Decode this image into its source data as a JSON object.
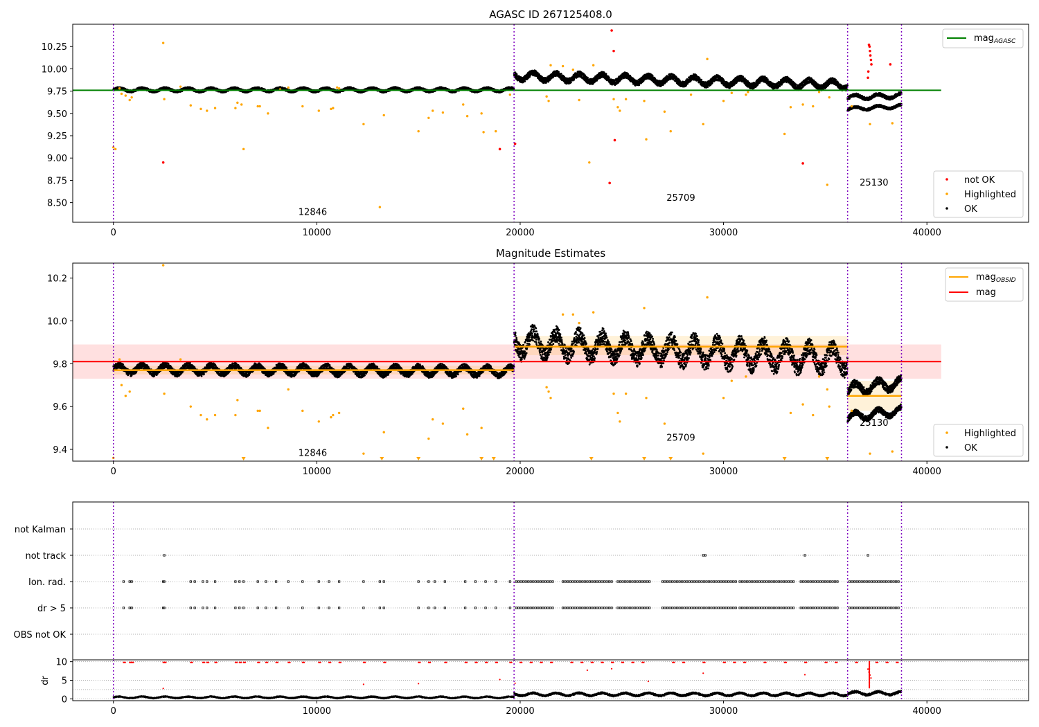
{
  "chart_data": [
    {
      "type": "scatter",
      "title": "AGASC ID 267125408.0",
      "xlabel": "",
      "ylabel": "",
      "xlim": [
        -2000,
        45000
      ],
      "ylim": [
        8.28,
        10.5
      ],
      "xticks": [
        0,
        10000,
        20000,
        30000,
        40000
      ],
      "xtick_labels": [
        "0",
        "10000",
        "20000",
        "30000",
        "40000"
      ],
      "yticks": [
        8.5,
        8.75,
        9.0,
        9.25,
        9.5,
        9.75,
        10.0,
        10.25
      ],
      "ytick_labels": [
        "8.50",
        "8.75",
        "9.00",
        "9.25",
        "9.50",
        "9.75",
        "10.00",
        "10.25"
      ],
      "obsid_boundaries": [
        0,
        19700,
        36100,
        38750
      ],
      "obsid_labels": [
        {
          "text": "12846",
          "x": 9800,
          "y": 8.36
        },
        {
          "text": "25709",
          "x": 27900,
          "y": 8.52
        },
        {
          "text": "25130",
          "x": 37400,
          "y": 8.69
        }
      ],
      "reference_line": {
        "name": "mag_AGASC",
        "y": 9.76,
        "x": [
          -2000,
          40700
        ],
        "color": "#008000"
      },
      "ok_segments": [
        {
          "x": [
            0,
            19700
          ],
          "y_center": [
            9.765,
            9.765
          ],
          "y_spread": 0.03
        },
        {
          "x": [
            19700,
            36100
          ],
          "y_center": [
            9.92,
            9.82
          ],
          "y_spread": 0.07
        },
        {
          "x": [
            36100,
            38750
          ],
          "y_center": [
            9.68,
            9.7
          ],
          "y_spread": 0.04
        },
        {
          "x": [
            36100,
            38750
          ],
          "y_center": [
            9.55,
            9.58
          ],
          "y_spread": 0.03
        }
      ],
      "highlighted": {
        "x": [
          0,
          100,
          300,
          400,
          600,
          800,
          900,
          2450,
          2500,
          3300,
          3800,
          4300,
          4600,
          5000,
          6000,
          6100,
          6300,
          6400,
          7100,
          7200,
          7600,
          8200,
          8600,
          9300,
          10100,
          10700,
          10800,
          11000,
          11100,
          12300,
          13100,
          13300,
          15000,
          15500,
          15700,
          16200,
          17200,
          17400,
          18100,
          18200,
          18800,
          19500,
          21300,
          21400,
          21500,
          22100,
          22600,
          22900,
          23400,
          23600,
          24600,
          24800,
          24900,
          25200,
          26100,
          26200,
          27100,
          27400,
          28400,
          29000,
          29200,
          30000,
          30400,
          31100,
          31200,
          33000,
          33300,
          33900,
          34400,
          34700,
          35200,
          35100,
          36300,
          37200,
          38300
        ],
        "y": [
          9.12,
          9.1,
          9.78,
          9.72,
          9.7,
          9.65,
          9.68,
          10.29,
          9.66,
          9.8,
          9.59,
          9.55,
          9.53,
          9.56,
          9.56,
          9.62,
          9.6,
          9.1,
          9.58,
          9.58,
          9.5,
          9.77,
          9.79,
          9.58,
          9.53,
          9.55,
          9.56,
          9.79,
          9.78,
          9.38,
          8.45,
          9.48,
          9.3,
          9.45,
          9.53,
          9.51,
          9.6,
          9.47,
          9.5,
          9.29,
          9.3,
          9.71,
          9.69,
          9.64,
          10.04,
          10.03,
          9.99,
          9.65,
          8.95,
          10.04,
          9.66,
          9.57,
          9.53,
          9.66,
          9.64,
          9.21,
          9.52,
          9.3,
          9.71,
          9.38,
          10.11,
          9.64,
          9.73,
          9.71,
          9.74,
          9.27,
          9.57,
          9.6,
          9.58,
          9.74,
          9.68,
          8.7,
          9.58,
          9.38,
          9.39
        ]
      },
      "not_ok": {
        "x": [
          2450,
          19000,
          19750,
          24400,
          24500,
          24600,
          24650,
          33900,
          37150,
          37180,
          37200,
          37220,
          37250,
          37270,
          37120,
          37100,
          38200
        ],
        "y": [
          8.95,
          9.1,
          9.16,
          8.72,
          10.43,
          10.2,
          9.2,
          8.94,
          10.27,
          10.25,
          10.2,
          10.15,
          10.1,
          10.05,
          9.97,
          9.9,
          10.05
        ]
      },
      "legend": {
        "placement": "upper-right",
        "entries": [
          {
            "label": "mag",
            "sub": "AGASC",
            "color": "#008000"
          }
        ]
      },
      "legend2": {
        "placement": "lower-right",
        "entries": [
          {
            "label": "not OK",
            "color": "#ff0000"
          },
          {
            "label": "Highlighted",
            "color": "#ffa500"
          },
          {
            "label": "OK",
            "color": "#000000"
          }
        ]
      }
    },
    {
      "type": "scatter",
      "title": "Magnitude Estimates",
      "xlabel": "",
      "ylabel": "",
      "xlim": [
        -2000,
        45000
      ],
      "ylim": [
        9.345,
        10.27
      ],
      "xticks": [
        0,
        10000,
        20000,
        30000,
        40000
      ],
      "xtick_labels": [
        "0",
        "10000",
        "20000",
        "30000",
        "40000"
      ],
      "yticks": [
        9.4,
        9.6,
        9.8,
        10.0,
        10.2
      ],
      "ytick_labels": [
        "9.4",
        "9.6",
        "9.8",
        "10.0",
        "10.2"
      ],
      "obsid_boundaries": [
        0,
        19700,
        36100,
        38750
      ],
      "obsid_labels": [
        {
          "text": "12846",
          "x": 9800,
          "y": 9.37
        },
        {
          "text": "25709",
          "x": 27900,
          "y": 9.44
        },
        {
          "text": "25130",
          "x": 37400,
          "y": 9.51
        }
      ],
      "mag_line": {
        "name": "mag",
        "y": 9.81,
        "band": [
          9.73,
          9.89
        ],
        "x": [
          -2000,
          40700
        ],
        "color": "#ff0000"
      },
      "obsid_mags": [
        {
          "x": [
            0,
            19700
          ],
          "y": 9.77,
          "band": [
            9.75,
            9.79
          ]
        },
        {
          "x": [
            19700,
            36100
          ],
          "y": 9.88,
          "band": [
            9.84,
            9.93
          ]
        },
        {
          "x": [
            36100,
            38750
          ],
          "y": 9.65,
          "band": [
            9.58,
            9.72
          ]
        }
      ],
      "ok_segments": [
        {
          "x": [
            0,
            19700
          ],
          "y_center": [
            9.775,
            9.765
          ],
          "y_spread": 0.032
        },
        {
          "x": [
            19700,
            36100
          ],
          "y_center": [
            9.9,
            9.82
          ],
          "y_spread": 0.085
        },
        {
          "x": [
            36100,
            38750
          ],
          "y_center": [
            9.68,
            9.71
          ],
          "y_spread": 0.04
        },
        {
          "x": [
            36100,
            38750
          ],
          "y_center": [
            9.55,
            9.58
          ],
          "y_spread": 0.03
        }
      ],
      "highlighted": {
        "x": [
          0,
          300,
          400,
          600,
          800,
          2450,
          2500,
          3300,
          3800,
          4300,
          4600,
          5000,
          6000,
          6100,
          7100,
          7200,
          7600,
          8600,
          9300,
          10100,
          10700,
          10800,
          11100,
          12300,
          13300,
          15500,
          15700,
          16200,
          17200,
          17400,
          18100,
          21300,
          21400,
          21500,
          22100,
          22600,
          22900,
          23600,
          24600,
          24800,
          24900,
          25200,
          26100,
          26200,
          27100,
          29000,
          29200,
          30000,
          30400,
          31100,
          33300,
          33900,
          34400,
          34700,
          35100,
          35200,
          36300,
          37200,
          38300
        ],
        "y": [
          9.36,
          9.82,
          9.7,
          9.65,
          9.67,
          10.26,
          9.66,
          9.82,
          9.6,
          9.56,
          9.54,
          9.56,
          9.56,
          9.63,
          9.58,
          9.58,
          9.5,
          9.68,
          9.58,
          9.53,
          9.55,
          9.56,
          9.57,
          9.38,
          9.48,
          9.45,
          9.54,
          9.52,
          9.59,
          9.47,
          9.5,
          9.69,
          9.67,
          9.64,
          10.03,
          10.03,
          9.99,
          10.04,
          9.66,
          9.57,
          9.53,
          9.66,
          10.06,
          9.64,
          9.52,
          9.38,
          10.11,
          9.64,
          9.72,
          9.74,
          9.57,
          9.61,
          9.56,
          9.74,
          9.68,
          9.6,
          9.58,
          9.38,
          9.39
        ]
      },
      "highlighted_below": [
        6400,
        13200,
        15000,
        18100,
        18700,
        23500,
        26100,
        27400,
        33000,
        35100
      ],
      "legend": {
        "placement": "upper-right",
        "entries": [
          {
            "label": "mag",
            "sub": "OBSID",
            "color": "#ffa500"
          },
          {
            "label": "mag",
            "sub": "",
            "color": "#ff0000"
          }
        ]
      },
      "legend2": {
        "placement": "lower-right",
        "entries": [
          {
            "label": "Highlighted",
            "color": "#ffa500"
          },
          {
            "label": "OK",
            "color": "#000000"
          }
        ]
      }
    },
    {
      "type": "scatter",
      "title": "",
      "xlabel": "",
      "ylabel": "",
      "xlim": [
        -2000,
        45000
      ],
      "categories": [
        "OBS not OK",
        "dr > 5",
        "Ion. rad.",
        "not track",
        "not Kalman"
      ],
      "obsid_boundaries": [
        0,
        19700,
        36100,
        38750
      ],
      "flags": {
        "not track": [
          2500,
          29000,
          29100,
          34000,
          37100
        ],
        "Ion. rad.": [
          500,
          800,
          900,
          2450,
          2500,
          3800,
          4000,
          4400,
          4600,
          5000,
          6000,
          6200,
          6400,
          7100,
          7500,
          8000,
          8600,
          9300,
          10100,
          10600,
          11100,
          12300,
          13100,
          13300,
          15000,
          15500,
          15800,
          16300,
          17300,
          17800,
          18300,
          18800,
          19500
        ],
        "dr > 5": [
          500,
          800,
          900,
          2450,
          2500,
          3800,
          4000,
          4400,
          4600,
          5000,
          6000,
          6200,
          6400,
          7100,
          7500,
          8000,
          8600,
          9300,
          10100,
          10600,
          11100,
          12300,
          13100,
          13300,
          15000,
          15500,
          15800,
          16300,
          17300,
          17800,
          18300,
          18800,
          19500
        ],
        "dense_ranges": [
          [
            19800,
            21700
          ],
          [
            22100,
            24600
          ],
          [
            24800,
            26400
          ],
          [
            27000,
            28700
          ],
          [
            28800,
            30600
          ],
          [
            30800,
            33500
          ],
          [
            33800,
            35600
          ],
          [
            36200,
            38600
          ]
        ]
      }
    },
    {
      "type": "scatter",
      "title": "",
      "xlabel": "",
      "ylabel": "dr",
      "xlim": [
        -2000,
        45000
      ],
      "ylim": [
        -0.5,
        10.5
      ],
      "yticks": [
        0,
        5,
        10
      ],
      "ytick_labels": [
        "0",
        "5",
        "10"
      ],
      "xticks": [
        0,
        10000,
        20000,
        30000,
        40000
      ],
      "xtick_labels": [
        "0",
        "10000",
        "20000",
        "30000",
        "40000"
      ],
      "obsid_boundaries": [
        0,
        19700,
        36100,
        38750
      ],
      "ok_segments": [
        {
          "x": [
            0,
            19700
          ],
          "y_center": [
            0.4,
            0.4
          ],
          "y_spread": 0.35
        },
        {
          "x": [
            19700,
            36100
          ],
          "y_center": [
            1.2,
            1.2
          ],
          "y_spread": 0.6
        },
        {
          "x": [
            36100,
            38750
          ],
          "y_center": [
            1.5,
            1.5
          ],
          "y_spread": 0.7
        }
      ],
      "not_ok_top": [
        500,
        800,
        900,
        2450,
        2500,
        3800,
        4400,
        4600,
        5000,
        6000,
        6200,
        6400,
        7100,
        7500,
        8000,
        8600,
        9300,
        10100,
        10600,
        11100,
        12300,
        13300,
        15000,
        15500,
        16300,
        17300,
        17800,
        18300,
        18800,
        19500,
        20000,
        20500,
        21000,
        21500,
        22500,
        23000,
        23500,
        24000,
        24500,
        25000,
        25500,
        26000,
        27500,
        28000,
        29000,
        30000,
        30500,
        31000,
        32000,
        33000,
        34000,
        35000,
        35500,
        36500,
        37500,
        38000,
        38500
      ],
      "not_ok_scatter": {
        "x": [
          2450,
          12300,
          15000,
          19000,
          19750,
          23300,
          24500,
          26300,
          29000,
          34000,
          37100,
          37150,
          37200,
          37250
        ],
        "y": [
          2.8,
          3.9,
          4.1,
          5.2,
          4.2,
          7.7,
          8.1,
          4.7,
          6.9,
          6.5,
          8.0,
          7.2,
          6.4,
          5.6
        ]
      }
    }
  ]
}
